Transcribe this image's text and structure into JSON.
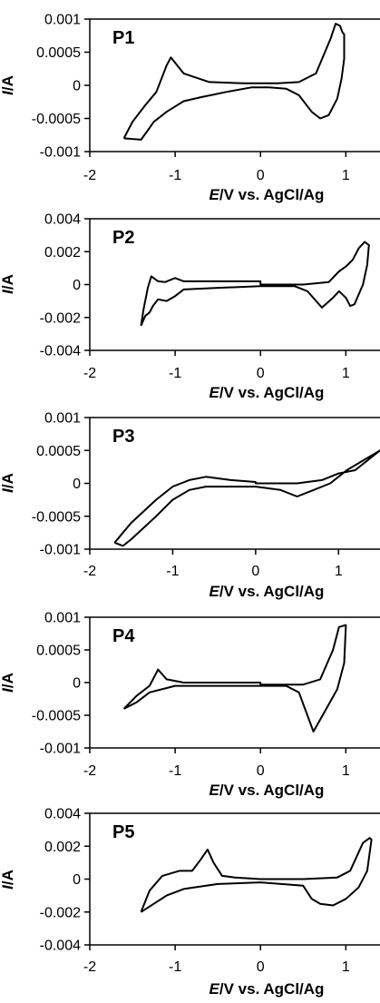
{
  "chart_data": [
    {
      "type": "line",
      "title": "P1",
      "xlabel_italic": "E",
      "xlabel_rest": "/V vs. AgCl/Ag",
      "ylabel_italic": "I",
      "ylabel_rest": "/A",
      "xlim": [
        -2,
        1.4
      ],
      "ylim": [
        -0.001,
        0.001
      ],
      "xticks": [
        -2,
        -1,
        0,
        1
      ],
      "xtick_labels": [
        "-2",
        "-1",
        "0",
        "1"
      ],
      "yticks": [
        0.001,
        0.0005,
        0,
        -0.0005,
        -0.001
      ],
      "ytick_labels": [
        "0.001",
        "0.0005",
        "0",
        "-0.0005",
        "-0.001"
      ],
      "series": [
        {
          "x": [
            -1.6,
            -1.5,
            -1.35,
            -1.22,
            -1.1,
            -1.05,
            -0.9,
            -0.6,
            -0.2,
            0.2,
            0.45,
            0.65,
            0.82,
            0.88,
            0.93,
            0.96,
            0.98,
            0.98,
            0.95,
            0.9,
            0.8,
            0.7,
            0.6,
            0.45,
            0.3,
            0.1,
            -0.1,
            -0.4,
            -0.7,
            -0.9,
            -1.1,
            -1.25,
            -1.32,
            -1.4,
            -1.6
          ],
          "y": [
            -0.0008,
            -0.00055,
            -0.0003,
            -0.0001,
            0.0003,
            0.00042,
            0.00018,
            5e-05,
            3e-05,
            3e-05,
            5e-05,
            0.00018,
            0.0007,
            0.00093,
            0.0009,
            0.0008,
            0.00077,
            0.0004,
            0.0001,
            -0.0002,
            -0.00045,
            -0.0005,
            -0.0004,
            -0.00015,
            -5e-05,
            -3e-05,
            -3e-05,
            -0.0001,
            -0.00018,
            -0.00024,
            -0.0004,
            -0.00055,
            -0.00068,
            -0.00082,
            -0.0008
          ]
        }
      ]
    },
    {
      "type": "line",
      "title": "P2",
      "xlabel_italic": "E",
      "xlabel_rest": "/V vs. AgCl/Ag",
      "ylabel_italic": "I",
      "ylabel_rest": "/A",
      "xlim": [
        -2,
        1.4
      ],
      "ylim": [
        -0.004,
        0.004
      ],
      "xticks": [
        -2,
        -1,
        0,
        1
      ],
      "xtick_labels": [
        "-2",
        "-1",
        "0",
        "1"
      ],
      "yticks": [
        0.004,
        0.002,
        0,
        -0.002,
        -0.004
      ],
      "ytick_labels": [
        "0.004",
        "0.002",
        "0",
        "-0.002",
        "-0.004"
      ],
      "series": [
        {
          "x": [
            -1.4,
            -1.37,
            -1.32,
            -1.28,
            -1.2,
            -1.12,
            -1.0,
            -0.9,
            -0.5,
            0.0,
            0.0,
            0.5,
            0.8,
            0.92,
            1.0,
            1.08,
            1.15,
            1.22,
            1.27,
            1.25,
            1.2,
            1.1,
            1.05,
            1.0,
            0.92,
            0.85,
            0.72,
            0.55,
            0.4,
            0.0,
            -0.5,
            -0.9,
            -1.0,
            -1.1,
            -1.2,
            -1.26,
            -1.3,
            -1.35,
            -1.4
          ],
          "y": [
            -0.0025,
            -0.0015,
            -0.0002,
            0.0005,
            0.0002,
            0.00015,
            0.0004,
            0.0002,
            0.0002,
            0.0002,
            0.0,
            0.0,
            0.00015,
            0.0008,
            0.0011,
            0.0015,
            0.0022,
            0.0026,
            0.0024,
            0.0012,
            0.0,
            -0.0012,
            -0.0013,
            -0.0008,
            -0.0004,
            -0.0008,
            -0.0014,
            -0.0004,
            -0.0001,
            -0.0001,
            -0.0002,
            -0.0003,
            -0.0007,
            -0.001,
            -0.0009,
            -0.0013,
            -0.0017,
            -0.0019,
            -0.0025
          ]
        }
      ]
    },
    {
      "type": "line",
      "title": "P3",
      "xlabel_italic": "E",
      "xlabel_rest": "/V vs. AgCl/Ag",
      "ylabel_italic": "I",
      "ylabel_rest": "/A",
      "xlim": [
        -2,
        1.5
      ],
      "ylim": [
        -0.001,
        0.001
      ],
      "xticks": [
        -2,
        -1,
        0,
        1
      ],
      "xtick_labels": [
        "-2",
        "-1",
        "0",
        "1"
      ],
      "yticks": [
        0.001,
        0.0005,
        0,
        -0.0005,
        -0.001
      ],
      "ytick_labels": [
        "0.001",
        "0.0005",
        "0",
        "-0.0005",
        "-0.001"
      ],
      "series": [
        {
          "x": [
            -1.7,
            -1.5,
            -1.2,
            -1.0,
            -0.9,
            -0.8,
            -0.6,
            -0.3,
            0.0,
            0.0,
            0.5,
            0.8,
            1.0,
            1.2,
            1.4,
            1.5,
            1.3,
            1.1,
            0.9,
            0.7,
            0.5,
            0.3,
            0.0,
            -0.6,
            -0.8,
            -1.0,
            -1.2,
            -1.5,
            -1.6,
            -1.7
          ],
          "y": [
            -0.0009,
            -0.0006,
            -0.00025,
            -5e-05,
            0.0,
            5e-05,
            0.0001,
            5e-05,
            2e-05,
            0.0,
            0.0,
            5e-05,
            0.00015,
            0.0002,
            0.0004,
            0.0005,
            0.00035,
            0.0002,
            0.0,
            -0.0001,
            -0.0002,
            -0.0001,
            -5e-05,
            -5e-05,
            -0.0001,
            -0.00025,
            -0.0005,
            -0.00085,
            -0.00095,
            -0.0009
          ]
        }
      ]
    },
    {
      "type": "line",
      "title": "P4",
      "xlabel_italic": "E",
      "xlabel_rest": "/V vs. AgCl/Ag",
      "ylabel_italic": "I",
      "ylabel_rest": "/A",
      "xlim": [
        -2,
        1.4
      ],
      "ylim": [
        -0.001,
        0.001
      ],
      "xticks": [
        -2,
        -1,
        0,
        1
      ],
      "xtick_labels": [
        "-2",
        "-1",
        "0",
        "1"
      ],
      "yticks": [
        0.001,
        0.0005,
        0,
        -0.0005,
        -0.001
      ],
      "ytick_labels": [
        "0.001",
        "0.0005",
        "0",
        "-0.0005",
        "-0.001"
      ],
      "series": [
        {
          "x": [
            -1.6,
            -1.45,
            -1.3,
            -1.2,
            -1.1,
            -0.9,
            -0.5,
            0.0,
            0.0,
            0.5,
            0.7,
            0.85,
            0.92,
            1.0,
            0.98,
            0.9,
            0.75,
            0.62,
            0.45,
            0.3,
            0.0,
            -0.5,
            -1.0,
            -1.3,
            -1.45,
            -1.6
          ],
          "y": [
            -0.0004,
            -0.0002,
            -5e-05,
            0.0002,
            5e-05,
            0.0,
            0.0,
            0.0,
            -3e-05,
            -3e-05,
            5e-05,
            0.0005,
            0.00085,
            0.00088,
            0.0003,
            -0.0001,
            -0.00045,
            -0.00075,
            -0.00015,
            -5e-05,
            -5e-05,
            -5e-05,
            -5e-05,
            -0.00015,
            -0.0003,
            -0.0004
          ]
        }
      ]
    },
    {
      "type": "line",
      "title": "P5",
      "xlabel_italic": "E",
      "xlabel_rest": "/V vs. AgCl/Ag",
      "ylabel_italic": "I",
      "ylabel_rest": "/A",
      "xlim": [
        -2,
        1.4
      ],
      "ylim": [
        -0.004,
        0.004
      ],
      "xticks": [
        -2,
        -1,
        0,
        1
      ],
      "xtick_labels": [
        "-2",
        "-1",
        "0",
        "1"
      ],
      "yticks": [
        0.004,
        0.002,
        0,
        -0.002,
        -0.004
      ],
      "ytick_labels": [
        "0.004",
        "0.002",
        "0",
        "-0.002",
        "-0.004"
      ],
      "series": [
        {
          "x": [
            -1.4,
            -1.3,
            -1.15,
            -0.95,
            -0.8,
            -0.7,
            -0.62,
            -0.55,
            -0.45,
            -0.3,
            0.0,
            0.5,
            0.9,
            1.05,
            1.2,
            1.28,
            1.3,
            1.25,
            1.15,
            1.0,
            0.85,
            0.7,
            0.6,
            0.5,
            0.0,
            -0.5,
            -0.9,
            -1.1,
            -1.25,
            -1.4
          ],
          "y": [
            -0.002,
            -0.0007,
            0.0002,
            0.0005,
            0.0005,
            0.0012,
            0.0018,
            0.001,
            0.0002,
            0.0001,
            0.0,
            0.0,
            0.0001,
            0.0005,
            0.0022,
            0.0025,
            0.0024,
            0.0005,
            -0.0005,
            -0.0012,
            -0.0016,
            -0.0015,
            -0.0012,
            -0.0004,
            -0.0002,
            -0.0003,
            -0.0006,
            -0.001,
            -0.0015,
            -0.002
          ]
        }
      ]
    }
  ]
}
